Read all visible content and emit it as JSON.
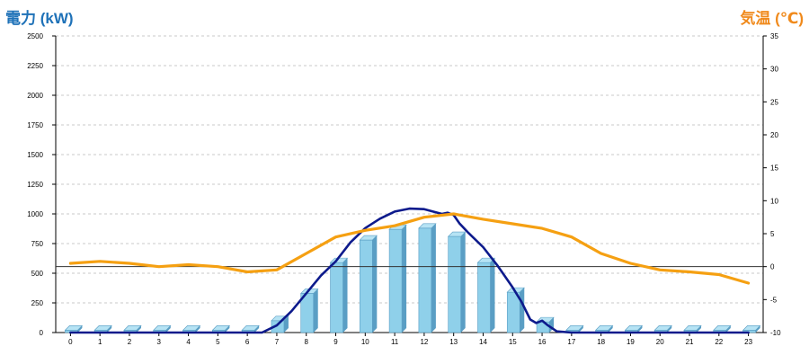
{
  "chart_data": {
    "type": "bar",
    "left_axis_label": "電力 (kW)",
    "right_axis_label": "気温 (℃)",
    "categories": [
      "0",
      "1",
      "2",
      "3",
      "4",
      "5",
      "6",
      "7",
      "8",
      "9",
      "10",
      "11",
      "12",
      "13",
      "14",
      "15",
      "16",
      "17",
      "18",
      "19",
      "20",
      "21",
      "22",
      "23"
    ],
    "y_left": {
      "ylim": [
        0,
        2500
      ],
      "ticks": [
        0,
        250,
        500,
        750,
        1000,
        1250,
        1500,
        1750,
        2000,
        2250,
        2500
      ]
    },
    "y_right": {
      "ylim": [
        -10,
        35
      ],
      "ticks": [
        -10,
        -5,
        0,
        5,
        10,
        15,
        20,
        25,
        30,
        35
      ]
    },
    "grid": true,
    "series": [
      {
        "kind": "bar",
        "axis": "left",
        "values": [
          20,
          20,
          20,
          20,
          20,
          20,
          20,
          100,
          330,
          590,
          780,
          870,
          880,
          810,
          590,
          340,
          90,
          20,
          20,
          20,
          20,
          20,
          20,
          20
        ]
      },
      {
        "kind": "line",
        "axis": "left",
        "points": [
          [
            0,
            0
          ],
          [
            6.5,
            0
          ],
          [
            7,
            60
          ],
          [
            7.5,
            180
          ],
          [
            8,
            330
          ],
          [
            8.5,
            480
          ],
          [
            9,
            600
          ],
          [
            9.5,
            760
          ],
          [
            10,
            880
          ],
          [
            10.5,
            960
          ],
          [
            11,
            1020
          ],
          [
            11.5,
            1045
          ],
          [
            12,
            1040
          ],
          [
            12.3,
            1020
          ],
          [
            12.6,
            1000
          ],
          [
            12.8,
            1010
          ],
          [
            13,
            990
          ],
          [
            13.2,
            920
          ],
          [
            13.5,
            840
          ],
          [
            14,
            720
          ],
          [
            14.5,
            560
          ],
          [
            15,
            380
          ],
          [
            15.3,
            260
          ],
          [
            15.6,
            110
          ],
          [
            15.8,
            80
          ],
          [
            16,
            100
          ],
          [
            16.2,
            60
          ],
          [
            16.5,
            10
          ],
          [
            17,
            0
          ],
          [
            23,
            0
          ]
        ]
      },
      {
        "kind": "line",
        "axis": "right",
        "points": [
          [
            0,
            0.5
          ],
          [
            1,
            0.8
          ],
          [
            2,
            0.5
          ],
          [
            3,
            0
          ],
          [
            4,
            0.3
          ],
          [
            5,
            0
          ],
          [
            6,
            -0.8
          ],
          [
            7,
            -0.5
          ],
          [
            8,
            2.0
          ],
          [
            9,
            4.5
          ],
          [
            10,
            5.5
          ],
          [
            11,
            6.2
          ],
          [
            12,
            7.5
          ],
          [
            13,
            8.0
          ],
          [
            14,
            7.2
          ],
          [
            15,
            6.5
          ],
          [
            16,
            5.8
          ],
          [
            17,
            4.5
          ],
          [
            18,
            2.0
          ],
          [
            19,
            0.5
          ],
          [
            20,
            -0.5
          ],
          [
            21,
            -0.8
          ],
          [
            22,
            -1.2
          ],
          [
            23,
            -2.5
          ]
        ]
      }
    ],
    "colors": {
      "bar_front": "#8fd0ea",
      "bar_side": "#5a9ec4",
      "bar_top": "#b6e3f4",
      "power_line": "#0d1a8c",
      "temp_line": "#f5a012",
      "zero_line": "#333333",
      "grid": "#c8c8c8",
      "left_title": "#1f72b8",
      "right_title": "#f08a1c"
    }
  }
}
